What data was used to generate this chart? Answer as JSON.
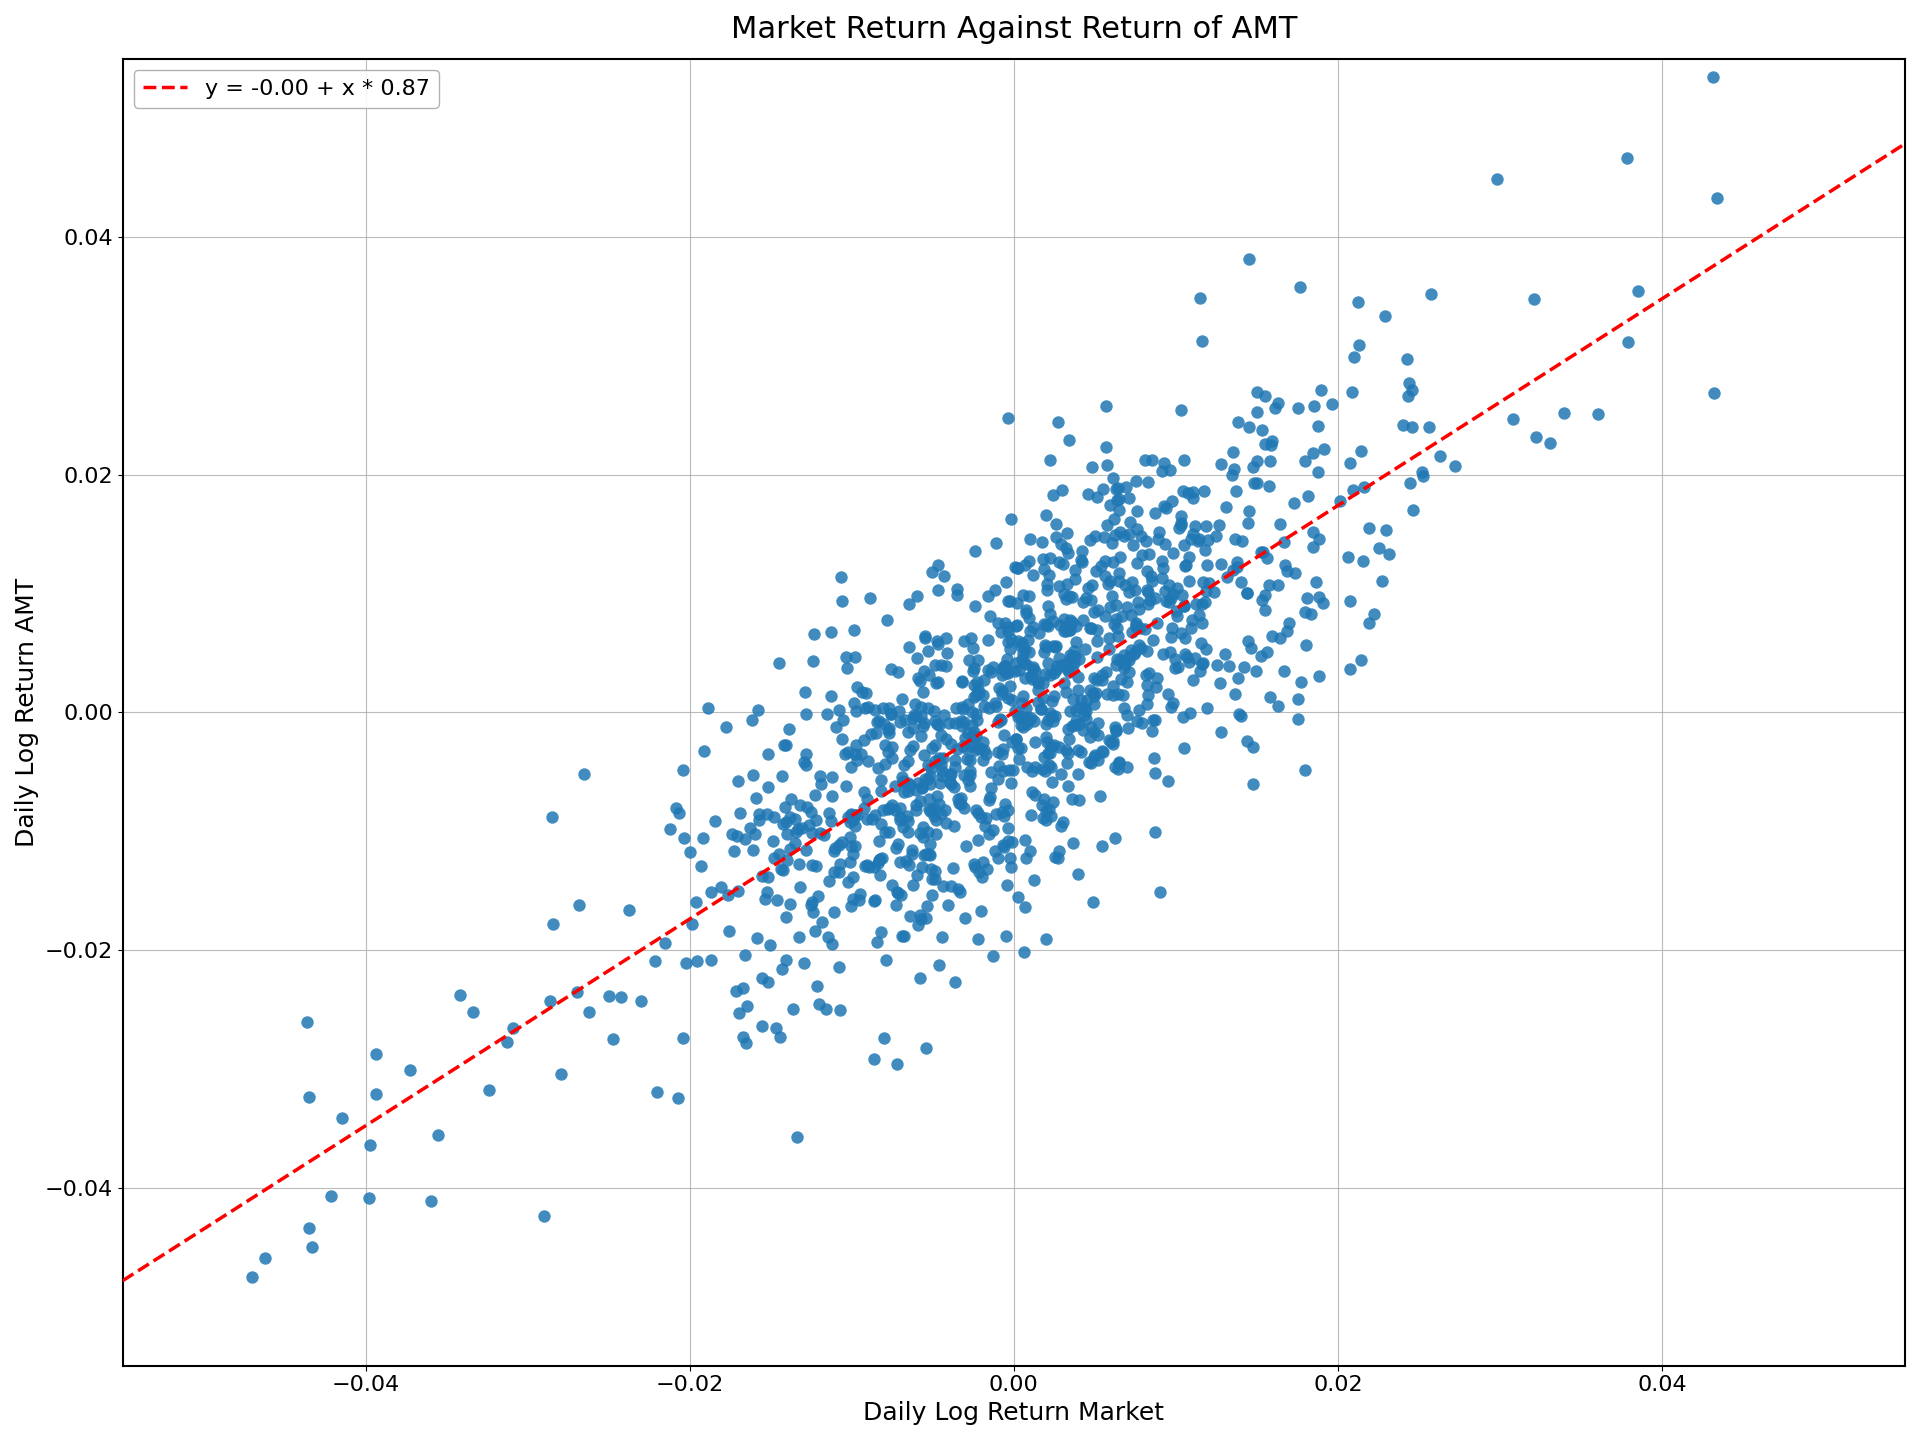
{
  "title": "Market Return Against Return of AMT",
  "xlabel": "Daily Log Return Market",
  "ylabel": "Daily Log Return AMT",
  "legend_label": "y = -0.00 + x * 0.87",
  "alpha_reg": 0.0,
  "beta": 0.87,
  "xlim": [
    -0.055,
    0.055
  ],
  "ylim": [
    -0.055,
    0.055
  ],
  "xticks": [
    -0.04,
    -0.02,
    0.0,
    0.02,
    0.04
  ],
  "yticks": [
    -0.04,
    -0.02,
    0.0,
    0.02,
    0.04
  ],
  "scatter_color": "#1f77b4",
  "line_color": "#ff0000",
  "scatter_alpha": 0.85,
  "scatter_size": 80,
  "title_fontsize": 22,
  "label_fontsize": 18,
  "tick_fontsize": 16,
  "legend_fontsize": 16,
  "figsize": [
    19.2,
    14.4
  ],
  "dpi": 100,
  "n_points": 1200,
  "market_std": 0.01,
  "noise_std": 0.008,
  "random_seed": 42
}
